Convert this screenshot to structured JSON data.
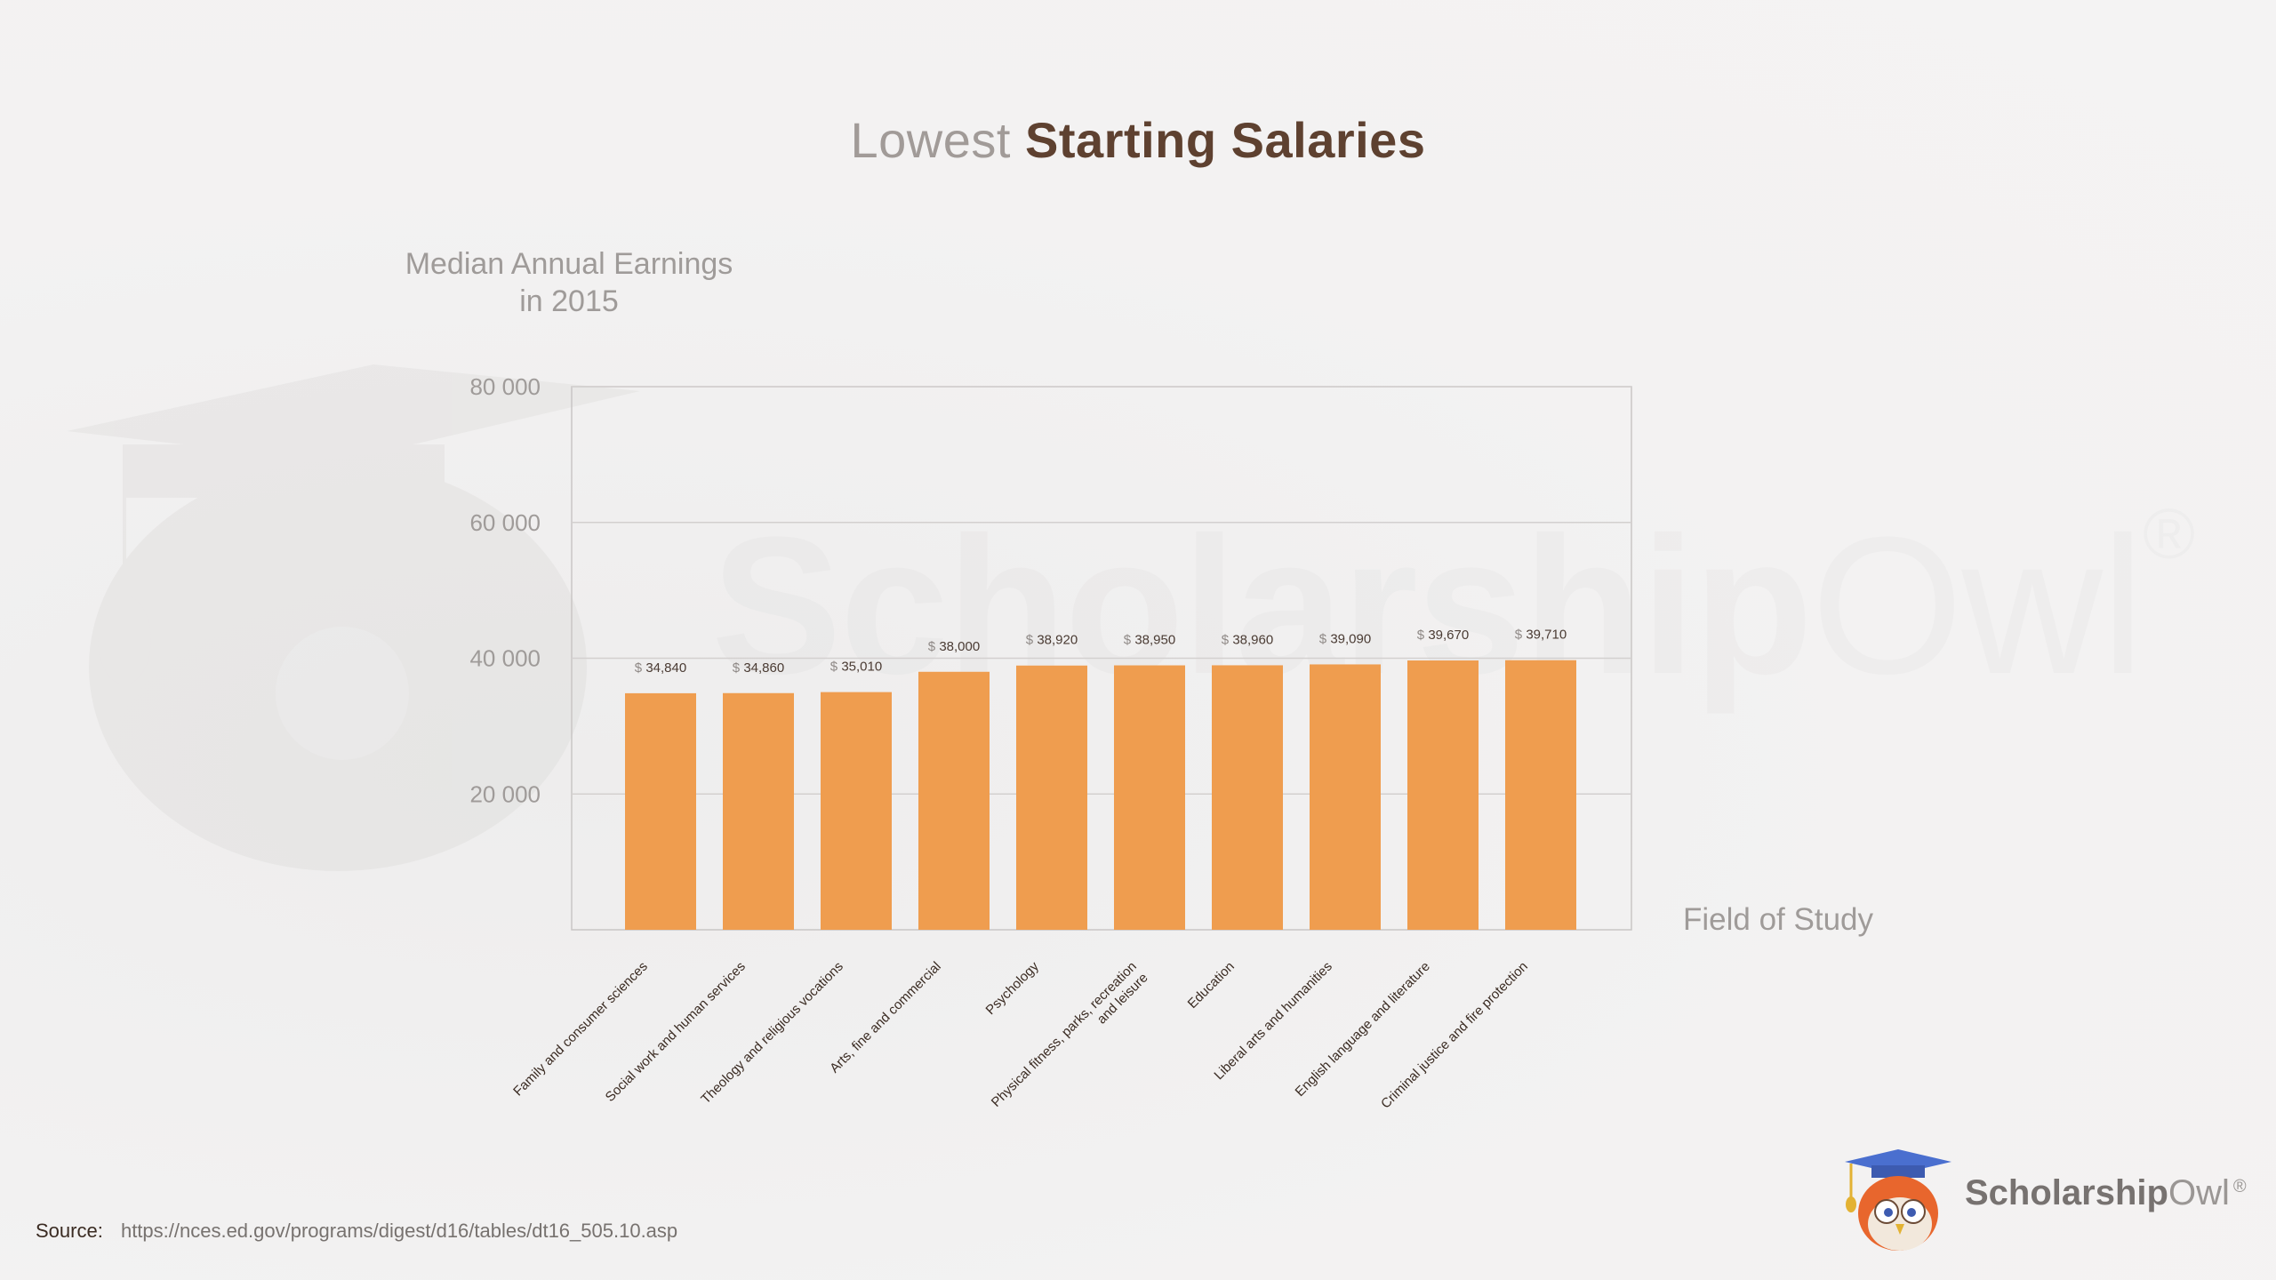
{
  "title": {
    "light": "Lowest",
    "bold": "Starting Salaries"
  },
  "watermark": {
    "bold": "Scholarship",
    "thin": "Owl",
    "mark": "®"
  },
  "logo": {
    "bold": "Scholarship",
    "thin": "Owl",
    "mark": "®"
  },
  "source": {
    "label": "Source:",
    "url": "https://nces.ed.gov/programs/digest/d16/tables/dt16_505.10.asp"
  },
  "colors": {
    "bar": "#ef9d4f",
    "title_light": "#a19b98",
    "title_bold": "#5e4130",
    "axis_text": "#9f9b99"
  },
  "chart_data": {
    "type": "bar",
    "title": "Lowest Starting Salaries",
    "ylabel_lines": [
      "Median Annual Earnings",
      "in 2015"
    ],
    "xlabel": "Field of Study",
    "ylim": [
      0,
      80000
    ],
    "yticks": [
      20000,
      40000,
      60000,
      80000
    ],
    "ytick_labels": [
      "20 000",
      "40 000",
      "60 000",
      "80 000"
    ],
    "grid": true,
    "categories": [
      [
        "Family and consumer sciences"
      ],
      [
        "Social work and human services"
      ],
      [
        "Theology and religious vocations"
      ],
      [
        "Arts, fine and commercial"
      ],
      [
        "Psychology"
      ],
      [
        "Physical fitness, parks, recreation",
        "and leisure"
      ],
      [
        "Education"
      ],
      [
        "Liberal arts and humanities"
      ],
      [
        "English language and literature"
      ],
      [
        "Criminal justice and fire protection"
      ]
    ],
    "values": [
      34840,
      34860,
      35010,
      38000,
      38920,
      38950,
      38960,
      39090,
      39670,
      39710
    ],
    "value_labels": [
      "34,840",
      "34,860",
      "35,010",
      "38,000",
      "38,920",
      "38,950",
      "38,960",
      "39,090",
      "39,670",
      "39,710"
    ],
    "currency": "$"
  }
}
